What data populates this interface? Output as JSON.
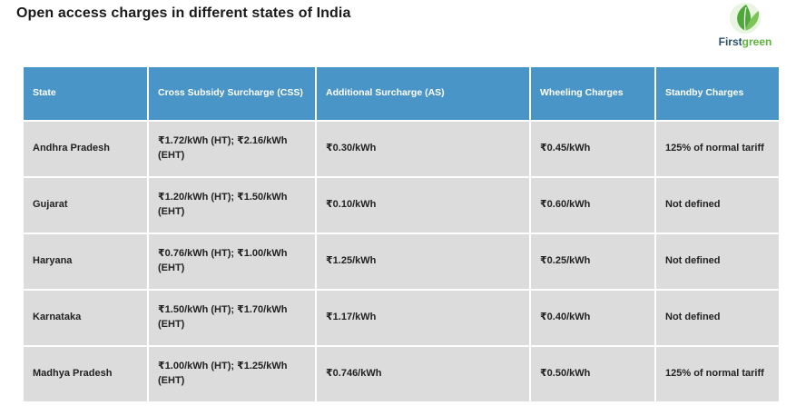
{
  "page_title": "Open access charges in different states of India",
  "logo": {
    "text_first": "First",
    "text_green": "green",
    "colors": {
      "first": "#2b4f6b",
      "green": "#5db33a"
    }
  },
  "table": {
    "header_color": "#4a95c7",
    "row_color": "#dcdcdc",
    "headers": [
      "State",
      "Cross Subsidy Surcharge (CSS)",
      "Additional Surcharge (AS)",
      "Wheeling Charges",
      "Standby Charges"
    ],
    "rows": [
      [
        "Andhra Pradesh",
        "₹1.72/kWh (HT); ₹2.16/kWh (EHT)",
        "₹0.30/kWh",
        "₹0.45/kWh",
        "125% of normal tariff"
      ],
      [
        "Gujarat",
        "₹1.20/kWh (HT); ₹1.50/kWh (EHT)",
        "₹0.10/kWh",
        "₹0.60/kWh",
        "Not defined"
      ],
      [
        "Haryana",
        "₹0.76/kWh (HT); ₹1.00/kWh (EHT)",
        "₹1.25/kWh",
        "₹0.25/kWh",
        "Not defined"
      ],
      [
        "Karnataka",
        "₹1.50/kWh (HT); ₹1.70/kWh (EHT)",
        "₹1.17/kWh",
        "₹0.40/kWh",
        "Not defined"
      ],
      [
        "Madhya Pradesh",
        "₹1.00/kWh (HT); ₹1.25/kWh (EHT)",
        "₹0.746/kWh",
        "₹0.50/kWh",
        "125% of normal tariff"
      ]
    ]
  }
}
